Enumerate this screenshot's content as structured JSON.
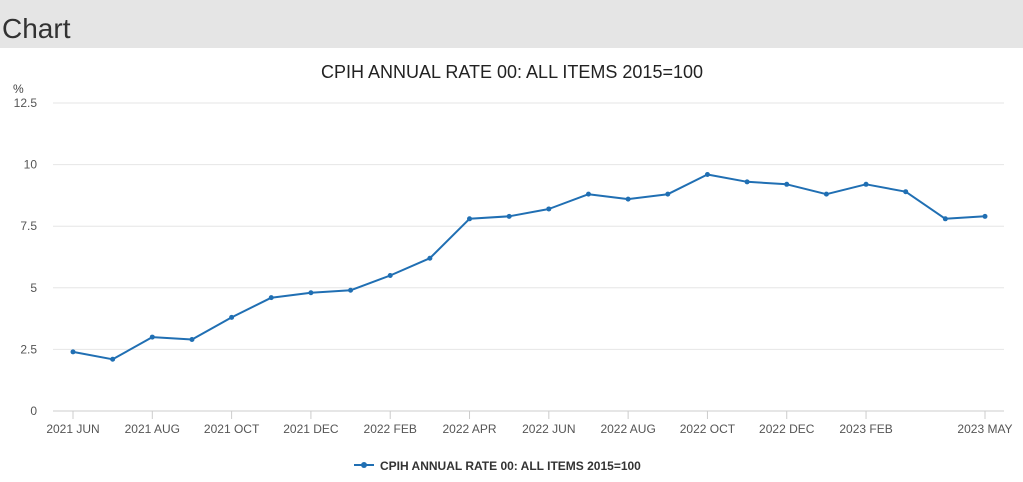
{
  "page": {
    "heading": "Chart"
  },
  "colors": {
    "series": "#206fb3",
    "grid": "#e6e6e6",
    "axis_text": "#555555",
    "header_bg": "#e5e5e5"
  },
  "chart_data": {
    "type": "line",
    "title": "CPIH ANNUAL RATE 00: ALL ITEMS 2015=100",
    "ylabel": "%",
    "xlabel": "",
    "ylim": [
      0,
      12.5
    ],
    "yticks": [
      "0",
      "2.5",
      "5",
      "7.5",
      "10",
      "12.5"
    ],
    "grid": true,
    "legend_position": "bottom-center",
    "x": [
      "2021 JUN",
      "2021 JUL",
      "2021 AUG",
      "2021 SEP",
      "2021 OCT",
      "2021 NOV",
      "2021 DEC",
      "2022 JAN",
      "2022 FEB",
      "2022 MAR",
      "2022 APR",
      "2022 MAY",
      "2022 JUN",
      "2022 JUL",
      "2022 AUG",
      "2022 SEP",
      "2022 OCT",
      "2022 NOV",
      "2022 DEC",
      "2023 JAN",
      "2023 FEB",
      "2023 MAR",
      "2023 APR",
      "2023 MAY"
    ],
    "x_tick_labels": [
      "2021 JUN",
      "2021 AUG",
      "2021 OCT",
      "2021 DEC",
      "2022 FEB",
      "2022 APR",
      "2022 JUN",
      "2022 AUG",
      "2022 OCT",
      "2022 DEC",
      "2023 FEB",
      "2023 MAY"
    ],
    "series": [
      {
        "name": "CPIH ANNUAL RATE 00: ALL ITEMS 2015=100",
        "values": [
          2.4,
          2.1,
          3.0,
          2.9,
          3.8,
          4.6,
          4.8,
          4.9,
          5.5,
          6.2,
          7.8,
          7.9,
          8.2,
          8.8,
          8.6,
          8.8,
          9.6,
          9.3,
          9.2,
          8.8,
          9.2,
          8.9,
          7.8,
          7.9
        ]
      }
    ]
  }
}
